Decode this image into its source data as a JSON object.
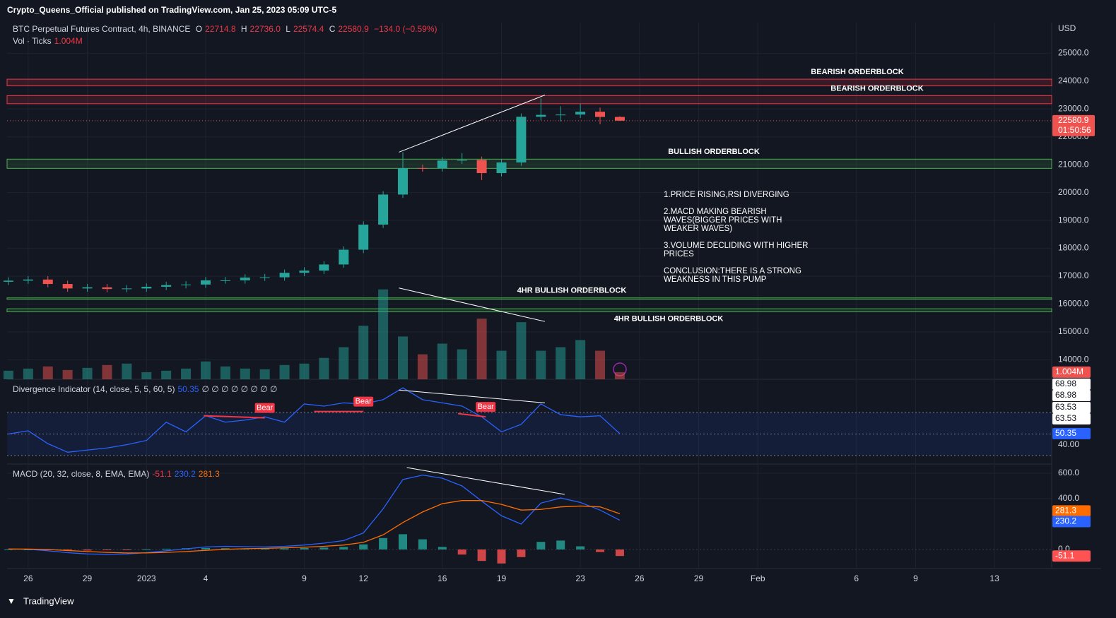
{
  "header": {
    "publisher": "Crypto_Queens_Official published on TradingView.com, Jan 25, 2023 05:09 UTC-5"
  },
  "footer": {
    "brand": "TradingView"
  },
  "chart_data": [
    {
      "type": "candlestick",
      "title": "BTC Perpetual Futures Contract, 4h, BINANCE",
      "currency": "USD",
      "x": [
        -1,
        0,
        1,
        2,
        3,
        4,
        5,
        6,
        7,
        8,
        9,
        10,
        11,
        12,
        13,
        14,
        15,
        16,
        17,
        18,
        19,
        20,
        21,
        22,
        23,
        24,
        25,
        26,
        27,
        28,
        29,
        30
      ],
      "open": [
        16800,
        16840,
        16880,
        16720,
        16560,
        16600,
        16540,
        16560,
        16620,
        16680,
        16700,
        16850,
        16850,
        16950,
        16960,
        17120,
        17200,
        17420,
        17950,
        18850,
        19930,
        20880,
        20870,
        21150,
        21170,
        20700,
        21080,
        22720,
        22790,
        22800,
        22900,
        22714.8
      ],
      "high": [
        16960,
        17000,
        17000,
        16840,
        16720,
        16720,
        16680,
        16740,
        16800,
        16820,
        16970,
        16970,
        17070,
        17080,
        17240,
        17320,
        17540,
        18070,
        18970,
        20050,
        21450,
        21000,
        21270,
        21420,
        21290,
        21200,
        22840,
        23380,
        23100,
        23180,
        23050,
        22736
      ],
      "low": [
        16680,
        16720,
        16600,
        16440,
        16440,
        16420,
        16420,
        16440,
        16500,
        16560,
        16580,
        16730,
        16730,
        16830,
        16840,
        17000,
        17080,
        17300,
        17830,
        18730,
        19810,
        20750,
        20750,
        21030,
        20450,
        20580,
        20960,
        22600,
        22550,
        22680,
        22450,
        22574.4
      ],
      "close": [
        16840,
        16880,
        16720,
        16560,
        16600,
        16540,
        16560,
        16620,
        16680,
        16700,
        16850,
        16850,
        16950,
        16960,
        17120,
        17200,
        17420,
        17950,
        18850,
        19930,
        20880,
        20870,
        21150,
        21170,
        20700,
        21080,
        22720,
        22790,
        22800,
        22900,
        22714.8,
        22580.9
      ],
      "up_color": "#26a69a",
      "down_color": "#ef5350",
      "xlim": [
        -1.07,
        51.9
      ],
      "ylim": [
        13300,
        26100
      ],
      "yticks": [
        {
          "value": 14000,
          "label": "14000.0"
        },
        {
          "value": 15000,
          "label": "15000.0"
        },
        {
          "value": 16000,
          "label": "16000.0"
        },
        {
          "value": 17000,
          "label": "17000.0"
        },
        {
          "value": 18000,
          "label": "18000.0"
        },
        {
          "value": 19000,
          "label": "19000.0"
        },
        {
          "value": 20000,
          "label": "20000.0"
        },
        {
          "value": 21000,
          "label": "21000.0"
        },
        {
          "value": 22000,
          "label": "22000.0"
        },
        {
          "value": 23000,
          "label": "23000.0"
        },
        {
          "value": 24000,
          "label": "24000.0"
        },
        {
          "value": 25000,
          "label": "25000.0"
        }
      ],
      "legend_keys": [
        "O",
        "H",
        "L",
        "C"
      ],
      "legend": {
        "open": 22714.8,
        "high": {
          "value": 22736,
          "label": "22736.0"
        },
        "low": 22574.4,
        "close": 22580.9,
        "change": {
          "value": -134,
          "label": "−134.0 (−0.59%)"
        }
      },
      "countdown": "01:50:56",
      "zones": [
        {
          "label": "BEARISH ORDERBLOCK",
          "from": 23830,
          "to": 24070,
          "color": "#f23645"
        },
        {
          "label": "BEARISH ORDERBLOCK",
          "from": 23190,
          "to": 23480,
          "color": "#f23645"
        },
        {
          "label": "BULLISH ORDERBLOCK",
          "from": 20870,
          "to": 21200,
          "color": "#4caf50"
        },
        {
          "label": "4HR BULLISH ORDERBLOCK",
          "from": 16170,
          "to": 16220,
          "color": "#4caf50"
        },
        {
          "label": "4HR BULLISH ORDERBLOCK",
          "from": 15720,
          "to": 15830,
          "color": "#4caf50"
        }
      ],
      "trendlines": [
        {
          "x": [
            18.8,
            26.2
          ],
          "y": [
            21450,
            23500
          ],
          "color": "#ffffff"
        }
      ],
      "notes": [
        "1.PRICE RISING,RSI DIVERGING",
        "2.MACD MAKING BEARISH WAVES(BIGGER PRICES WITH WEAKER WAVES)",
        "3.VOLUME DECLIDING WITH HIGHER PRICES",
        "CONCLUSION:THERE IS A STRONG WEAKNESS IN THIS PUMP"
      ]
    },
    {
      "type": "bar",
      "title": "Vol · Ticks",
      "last_label": "1.004M",
      "x": [
        -1,
        0,
        1,
        2,
        3,
        4,
        5,
        6,
        7,
        8,
        9,
        10,
        11,
        12,
        13,
        14,
        15,
        16,
        17,
        18,
        19,
        20,
        21,
        22,
        23,
        24,
        25,
        26,
        27,
        28,
        29,
        30
      ],
      "values": [
        1200000,
        1500000,
        1800000,
        1300000,
        1600000,
        2000000,
        2200000,
        1000000,
        1200000,
        1500000,
        2500000,
        1800000,
        1500000,
        1400000,
        2000000,
        2200000,
        3000000,
        4500000,
        7500000,
        12600000,
        6000000,
        3500000,
        5000000,
        4200000,
        8500000,
        4000000,
        8000000,
        4000000,
        4500000,
        5500000,
        4000000,
        1004000
      ],
      "up_color": "#26a69a",
      "down_color": "#ef5350",
      "xlim": [
        -1.07,
        51.9
      ],
      "ylim": [
        0,
        50000000
      ],
      "trendlines": [
        {
          "x": [
            18.8,
            26.2
          ],
          "y": [
            12800000,
            8100000
          ],
          "color": "#ffffff"
        }
      ]
    },
    {
      "type": "line",
      "title": "Divergence Indicator (14, close, 5, 5, 60, 5)",
      "legend_extra": "∅ ∅ ∅ ∅ ∅ ∅ ∅ ∅",
      "x": [
        -1,
        0,
        1,
        2,
        3,
        4,
        5,
        6,
        7,
        8,
        9,
        10,
        11,
        12,
        13,
        14,
        15,
        16,
        17,
        18,
        19,
        20,
        21,
        22,
        23,
        24,
        25,
        26,
        27,
        28,
        29,
        30
      ],
      "series": [
        {
          "color": "#2962ff",
          "values": [
            50,
            53,
            41,
            33,
            35,
            37,
            40,
            44,
            61,
            52,
            67,
            61,
            63,
            66,
            61,
            78,
            76,
            79,
            78,
            82,
            93,
            82,
            79,
            76,
            66,
            52,
            59,
            78,
            68,
            66,
            67,
            50.35
          ]
        }
      ],
      "xlim": [
        -1.07,
        51.9
      ],
      "ylim": [
        22,
        101
      ],
      "yticks": [
        {
          "value": 40,
          "label": "40.00"
        }
      ],
      "hlines": [
        70,
        50,
        30
      ],
      "price_labels": [
        68.98,
        68.98,
        63.53,
        63.53
      ],
      "signals": [
        {
          "label": "Bear",
          "x": [
            8.9,
            12.0
          ],
          "y": [
            67,
            65
          ]
        },
        {
          "label": "Bear",
          "x": [
            14.5,
            17.0
          ],
          "y": [
            71,
            71
          ]
        },
        {
          "label": "Bear",
          "x": [
            21.8,
            23.2
          ],
          "y": [
            69,
            66
          ]
        }
      ],
      "trendlines": [
        {
          "x": [
            18.8,
            26.2
          ],
          "y": [
            91,
            79
          ],
          "color": "#ffffff"
        }
      ]
    },
    {
      "type": "macd",
      "title": "MACD (20, 32, close, 8, EMA, EMA)",
      "x": [
        -1,
        0,
        1,
        2,
        3,
        4,
        5,
        6,
        7,
        8,
        9,
        10,
        11,
        12,
        13,
        14,
        15,
        16,
        17,
        18,
        19,
        20,
        21,
        22,
        23,
        24,
        25,
        26,
        27,
        28,
        29,
        30
      ],
      "series": [
        {
          "color": "#2962ff",
          "values": [
            5,
            2,
            -10,
            -25,
            -35,
            -38,
            -35,
            -25,
            -10,
            5,
            20,
            25,
            22,
            20,
            25,
            35,
            50,
            70,
            130,
            320,
            550,
            585,
            560,
            500,
            380,
            265,
            200,
            365,
            405,
            370,
            310,
            230.2
          ]
        },
        {
          "color": "#ff6d00",
          "values": [
            3,
            3,
            0,
            -8,
            -16,
            -23,
            -27,
            -27,
            -23,
            -16,
            -7,
            1,
            6,
            9,
            13,
            18,
            25,
            35,
            56,
            115,
            212,
            295,
            360,
            385,
            385,
            355,
            310,
            315,
            335,
            342,
            335,
            281.3
          ]
        }
      ],
      "histogram": {
        "values": [
          2,
          0,
          -5,
          -8,
          -8,
          -6,
          -3,
          2,
          6,
          10,
          12,
          10,
          8,
          7,
          9,
          12,
          15,
          20,
          40,
          90,
          120,
          80,
          20,
          -40,
          -90,
          -110,
          -60,
          60,
          70,
          25,
          -20,
          -51.1
        ],
        "colors": [
          "#26a69a",
          "#ff5252"
        ]
      },
      "xlim": [
        -1.07,
        51.9
      ],
      "ylim": [
        -150,
        672
      ],
      "yticks": [
        {
          "value": 0,
          "label": "0.0"
        },
        {
          "value": 400,
          "label": "400.0"
        },
        {
          "value": 600,
          "label": "600.0"
        }
      ],
      "xticks": [
        {
          "value": 0,
          "label": "26"
        },
        {
          "value": 3,
          "label": "29"
        },
        {
          "value": 6,
          "label": "2023"
        },
        {
          "value": 9,
          "label": "4"
        },
        {
          "value": 14,
          "label": "9"
        },
        {
          "value": 17,
          "label": "12"
        },
        {
          "value": 21,
          "label": "16"
        },
        {
          "value": 24,
          "label": "19"
        },
        {
          "value": 28,
          "label": "23"
        },
        {
          "value": 31,
          "label": "26"
        },
        {
          "value": 34,
          "label": "29"
        },
        {
          "value": 37,
          "label": "Feb"
        },
        {
          "value": 42,
          "label": "6"
        },
        {
          "value": 45,
          "label": "9"
        },
        {
          "value": 49,
          "label": "13"
        }
      ],
      "trendlines": [
        {
          "x": [
            19.2,
            27.2
          ],
          "y": [
            644,
            433
          ],
          "color": "#ffffff"
        }
      ]
    }
  ]
}
